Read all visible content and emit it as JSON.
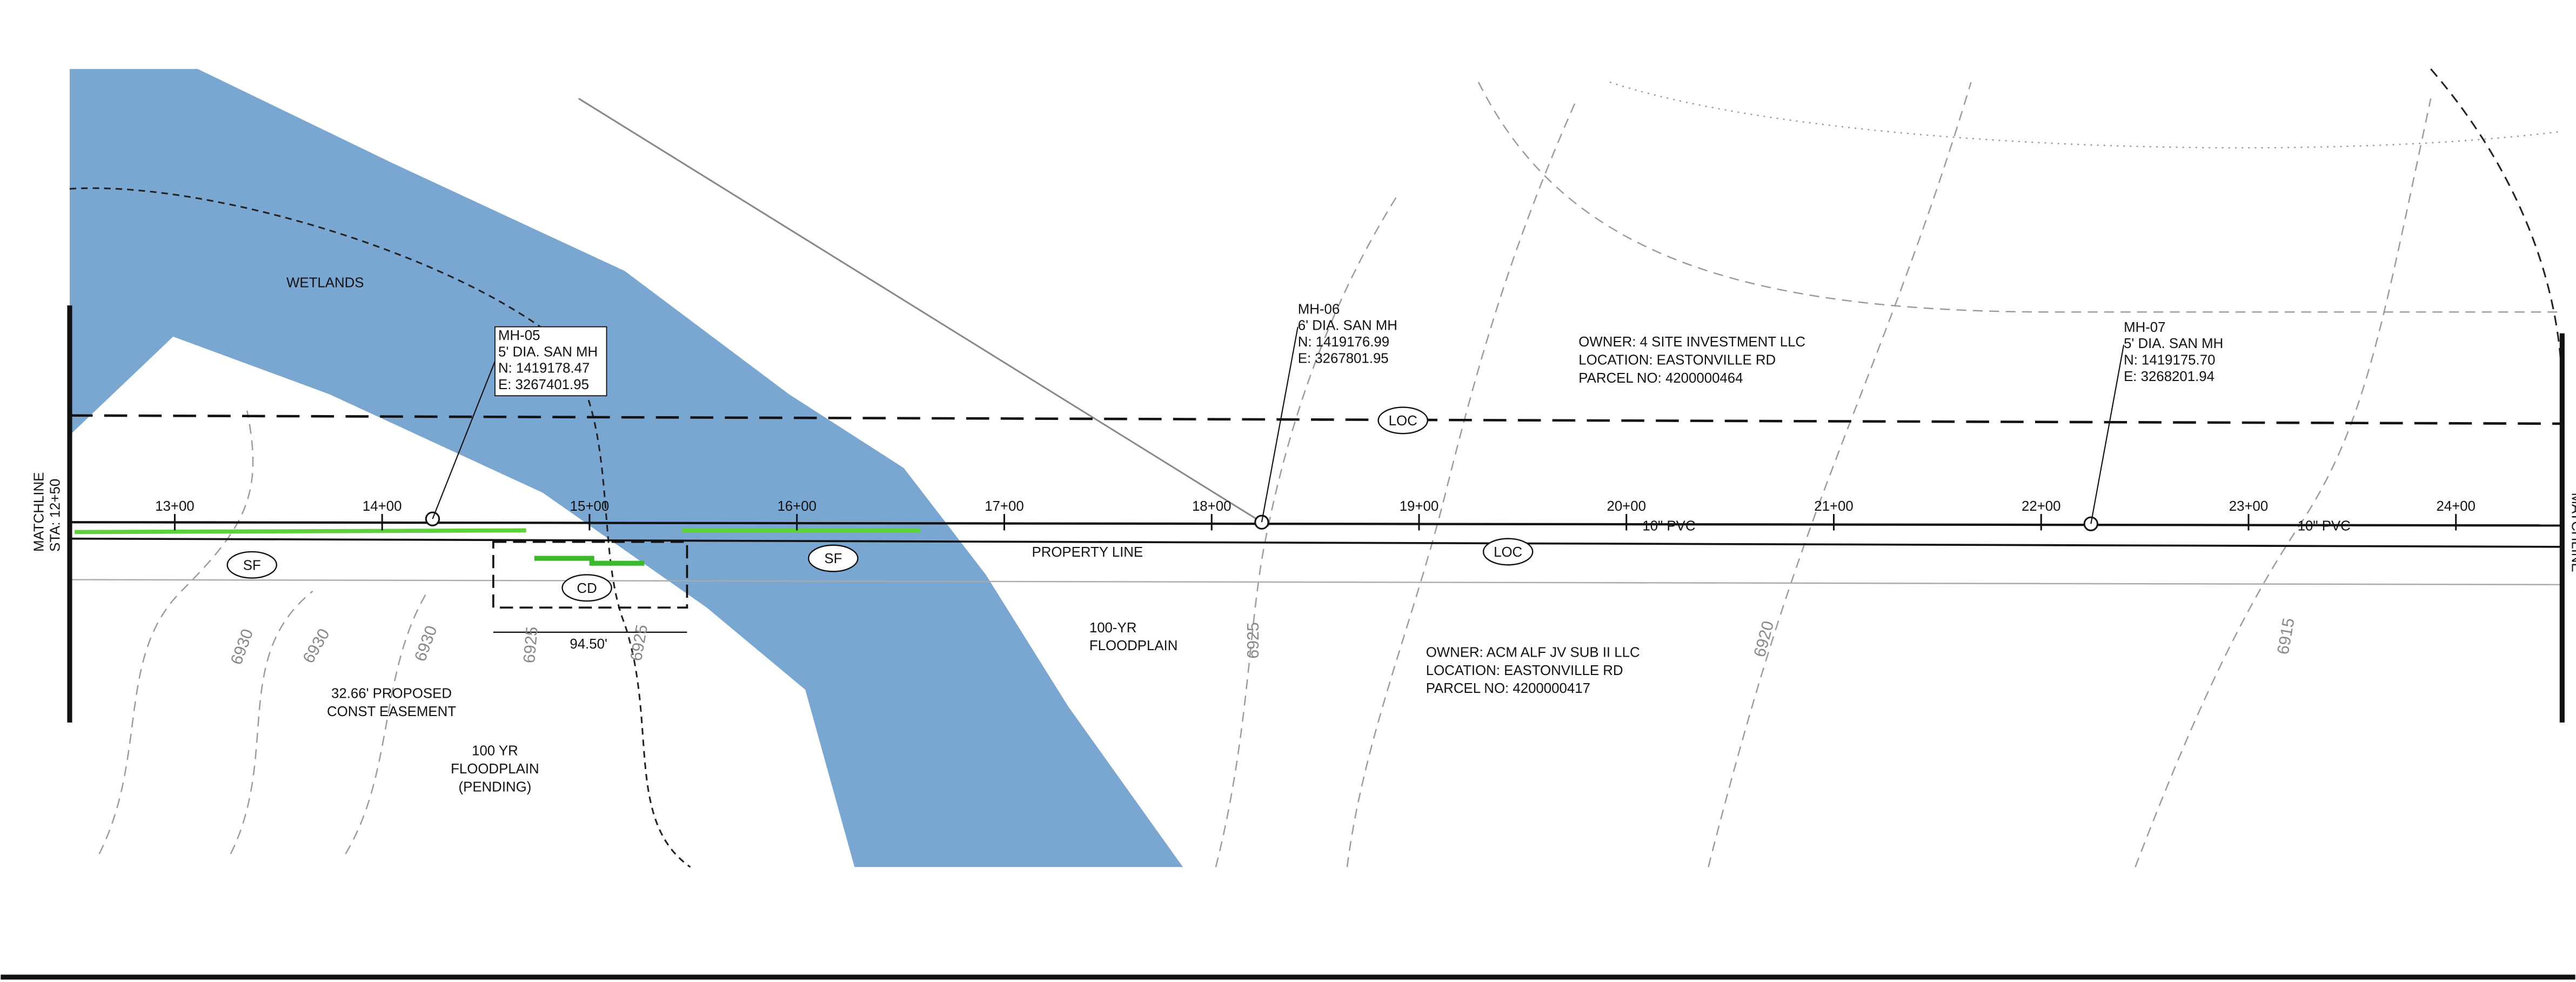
{
  "matchline_left": [
    "MATCHLINE",
    "STA: 12+50"
  ],
  "matchline_right": "MATCHLINE",
  "stations": [
    "13+00",
    "14+00",
    "15+00",
    "16+00",
    "17+00",
    "18+00",
    "19+00",
    "20+00",
    "21+00",
    "22+00",
    "23+00",
    "24+00"
  ],
  "manholes": [
    {
      "lines": [
        "MH-05",
        "5' DIA. SAN MH",
        "N: 1419178.47",
        "E: 3267401.95"
      ]
    },
    {
      "lines": [
        "MH-06",
        "6' DIA. SAN MH",
        "N: 1419176.99",
        "E: 3267801.95"
      ]
    },
    {
      "lines": [
        "MH-07",
        "5' DIA. SAN MH",
        "N: 1419175.70",
        "E: 3268201.94"
      ]
    }
  ],
  "owners": [
    {
      "lines": [
        "OWNER: 4 SITE INVESTMENT LLC",
        "LOCATION: EASTONVILLE RD",
        "PARCEL NO: 4200000464"
      ]
    },
    {
      "lines": [
        "OWNER: ACM ALF JV SUB II LLC",
        "LOCATION: EASTONVILLE RD",
        "PARCEL NO: 4200000417"
      ]
    }
  ],
  "labels": {
    "wetlands": "WETLANDS",
    "property_line": "PROPERTY LINE",
    "floodplain": [
      "100-YR",
      "FLOODPLAIN"
    ],
    "floodplain_pending": [
      "100 YR",
      "FLOODPLAIN",
      "(PENDING)"
    ],
    "easement": [
      "32.66' PROPOSED",
      "CONST EASEMENT"
    ],
    "dimension": "94.50'",
    "pipe": [
      "10\" PVC",
      "10\" PVC"
    ]
  },
  "symbols": [
    "SF",
    "SF",
    "CD",
    "LOC",
    "LOC"
  ],
  "contours": [
    "6930",
    "6930",
    "6930",
    "6925",
    "6925",
    "6925",
    "6920",
    "6915"
  ]
}
